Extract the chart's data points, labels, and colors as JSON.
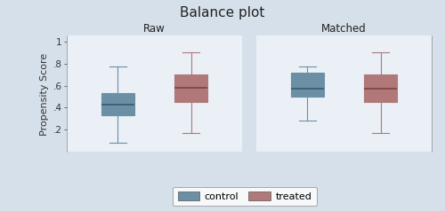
{
  "title": "Balance plot",
  "ylabel": "Propensity Score",
  "panels": [
    "Raw",
    "Matched"
  ],
  "ylim": [
    0,
    1.05
  ],
  "yticks": [
    0.2,
    0.4,
    0.6,
    0.8,
    1.0
  ],
  "yticklabels": [
    ".2",
    ".4",
    ".6",
    ".8",
    "1"
  ],
  "background_color": "#d6e0ea",
  "plot_bg_color": "#eaf0f6",
  "control_color": "#6b8fa5",
  "treated_color": "#b07878",
  "raw": {
    "control": {
      "whislo": 0.08,
      "q1": 0.33,
      "med": 0.43,
      "q3": 0.53,
      "whishi": 0.77
    },
    "treated": {
      "whislo": 0.17,
      "q1": 0.45,
      "med": 0.58,
      "q3": 0.7,
      "whishi": 0.9
    }
  },
  "matched": {
    "control": {
      "whislo": 0.28,
      "q1": 0.5,
      "med": 0.57,
      "q3": 0.72,
      "whishi": 0.77
    },
    "treated": {
      "whislo": 0.17,
      "q1": 0.45,
      "med": 0.57,
      "q3": 0.7,
      "whishi": 0.9
    }
  },
  "legend_labels": [
    "control",
    "treated"
  ],
  "title_fontsize": 11,
  "panel_fontsize": 8.5,
  "label_fontsize": 8,
  "tick_fontsize": 7.5,
  "legend_fontsize": 8
}
